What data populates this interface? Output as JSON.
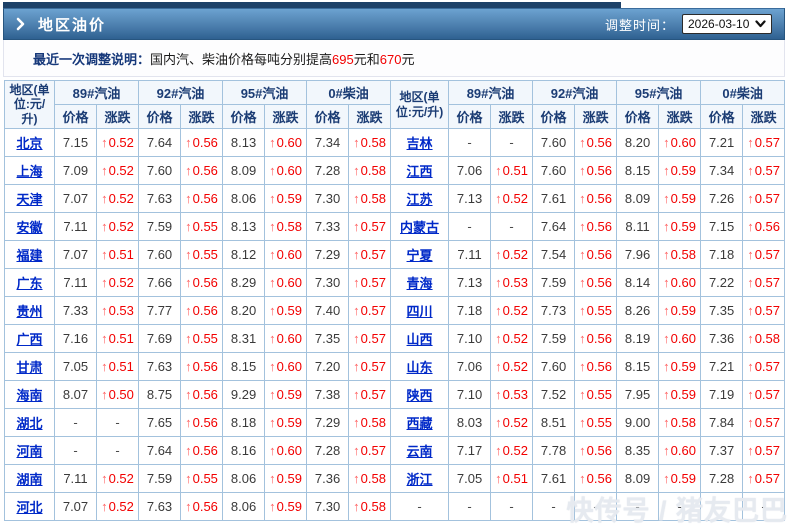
{
  "header": {
    "title": "地区油价",
    "adjust_time_label": "调整时间：",
    "date_value": "2026-03-10"
  },
  "notice": {
    "label": "最近一次调整说明：",
    "text_before": "国内汽、柴油价格每吨分别提高",
    "amount1": "695",
    "mid": "元和",
    "amount2": "670",
    "after": "元"
  },
  "table": {
    "region_header": "地区(单位:元/升)",
    "fuel_groups": [
      "89#汽油",
      "92#汽油",
      "95#汽油",
      "0#柴油"
    ],
    "sub_headers": [
      "价格",
      "涨跌"
    ],
    "up_arrow": "↑",
    "rows_left": [
      {
        "region": "北京",
        "values": [
          "7.15",
          "0.52",
          "7.64",
          "0.56",
          "8.13",
          "0.60",
          "7.34",
          "0.58"
        ]
      },
      {
        "region": "上海",
        "values": [
          "7.09",
          "0.52",
          "7.60",
          "0.56",
          "8.09",
          "0.60",
          "7.28",
          "0.58"
        ]
      },
      {
        "region": "天津",
        "values": [
          "7.07",
          "0.52",
          "7.63",
          "0.56",
          "8.06",
          "0.59",
          "7.30",
          "0.58"
        ]
      },
      {
        "region": "安徽",
        "values": [
          "7.11",
          "0.52",
          "7.59",
          "0.55",
          "8.13",
          "0.58",
          "7.33",
          "0.57"
        ]
      },
      {
        "region": "福建",
        "values": [
          "7.07",
          "0.51",
          "7.60",
          "0.55",
          "8.12",
          "0.60",
          "7.29",
          "0.57"
        ]
      },
      {
        "region": "广东",
        "values": [
          "7.11",
          "0.52",
          "7.66",
          "0.56",
          "8.29",
          "0.60",
          "7.30",
          "0.57"
        ]
      },
      {
        "region": "贵州",
        "values": [
          "7.33",
          "0.53",
          "7.77",
          "0.56",
          "8.20",
          "0.59",
          "7.40",
          "0.57"
        ]
      },
      {
        "region": "广西",
        "values": [
          "7.16",
          "0.51",
          "7.69",
          "0.55",
          "8.31",
          "0.60",
          "7.35",
          "0.57"
        ]
      },
      {
        "region": "甘肃",
        "values": [
          "7.05",
          "0.51",
          "7.63",
          "0.56",
          "8.15",
          "0.60",
          "7.20",
          "0.57"
        ]
      },
      {
        "region": "海南",
        "values": [
          "8.07",
          "0.50",
          "8.75",
          "0.56",
          "9.29",
          "0.59",
          "7.38",
          "0.57"
        ]
      },
      {
        "region": "湖北",
        "values": [
          "-",
          "-",
          "7.65",
          "0.56",
          "8.18",
          "0.59",
          "7.29",
          "0.58"
        ]
      },
      {
        "region": "河南",
        "values": [
          "-",
          "-",
          "7.64",
          "0.56",
          "8.16",
          "0.60",
          "7.28",
          "0.57"
        ]
      },
      {
        "region": "湖南",
        "values": [
          "7.11",
          "0.52",
          "7.59",
          "0.55",
          "8.06",
          "0.59",
          "7.36",
          "0.58"
        ]
      },
      {
        "region": "河北",
        "values": [
          "7.07",
          "0.52",
          "7.63",
          "0.56",
          "8.06",
          "0.59",
          "7.30",
          "0.58"
        ]
      }
    ],
    "rows_right": [
      {
        "region": "吉林",
        "values": [
          "-",
          "-",
          "7.60",
          "0.56",
          "8.20",
          "0.60",
          "7.21",
          "0.57"
        ]
      },
      {
        "region": "江西",
        "values": [
          "7.06",
          "0.51",
          "7.60",
          "0.56",
          "8.15",
          "0.59",
          "7.34",
          "0.57"
        ]
      },
      {
        "region": "江苏",
        "values": [
          "7.13",
          "0.52",
          "7.61",
          "0.56",
          "8.09",
          "0.59",
          "7.26",
          "0.57"
        ]
      },
      {
        "region": "内蒙古",
        "values": [
          "-",
          "-",
          "7.64",
          "0.56",
          "8.11",
          "0.59",
          "7.15",
          "0.56"
        ]
      },
      {
        "region": "宁夏",
        "values": [
          "7.11",
          "0.52",
          "7.54",
          "0.56",
          "7.96",
          "0.58",
          "7.18",
          "0.57"
        ]
      },
      {
        "region": "青海",
        "values": [
          "7.13",
          "0.53",
          "7.59",
          "0.56",
          "8.14",
          "0.60",
          "7.22",
          "0.57"
        ]
      },
      {
        "region": "四川",
        "values": [
          "7.18",
          "0.52",
          "7.73",
          "0.55",
          "8.26",
          "0.59",
          "7.35",
          "0.57"
        ]
      },
      {
        "region": "山西",
        "values": [
          "7.10",
          "0.52",
          "7.59",
          "0.56",
          "8.19",
          "0.60",
          "7.36",
          "0.58"
        ]
      },
      {
        "region": "山东",
        "values": [
          "7.06",
          "0.52",
          "7.60",
          "0.56",
          "8.15",
          "0.59",
          "7.21",
          "0.57"
        ]
      },
      {
        "region": "陕西",
        "values": [
          "7.10",
          "0.53",
          "7.52",
          "0.55",
          "7.95",
          "0.59",
          "7.19",
          "0.57"
        ]
      },
      {
        "region": "西藏",
        "values": [
          "8.03",
          "0.52",
          "8.51",
          "0.55",
          "9.00",
          "0.58",
          "7.84",
          "0.57"
        ]
      },
      {
        "region": "云南",
        "values": [
          "7.17",
          "0.52",
          "7.78",
          "0.56",
          "8.35",
          "0.60",
          "7.37",
          "0.57"
        ]
      },
      {
        "region": "浙江",
        "values": [
          "7.05",
          "0.51",
          "7.61",
          "0.56",
          "8.09",
          "0.59",
          "7.28",
          "0.57"
        ]
      },
      {
        "region": "-",
        "values": [
          "-",
          "-",
          "-",
          "-",
          "-",
          "-",
          "-",
          "-"
        ]
      }
    ]
  },
  "watermark": "快传号 / 猪友巴巴",
  "colors": {
    "header_gradient_top": "#6ca2d0",
    "header_gradient_bottom": "#2f6191",
    "top_strip": "#1d4168",
    "table_border": "#a3c2dd",
    "header_text": "#1b3c74",
    "region_link": "#0029c8",
    "price_text": "#3a3a3a",
    "change_text": "#f20000"
  }
}
